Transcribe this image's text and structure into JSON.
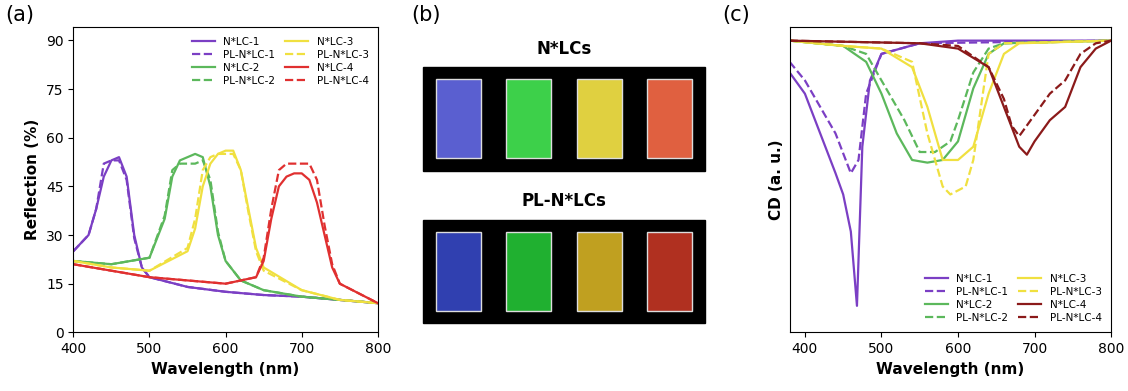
{
  "chart_data": [
    {
      "type": "line",
      "panel": "(a)",
      "x_label": "Wavelength (nm)",
      "y_label": "Reflection (%)",
      "xlim": [
        400,
        800
      ],
      "xticks": [
        400,
        500,
        600,
        700,
        800
      ],
      "ylim": [
        0,
        94
      ],
      "yticks": [
        0,
        15,
        30,
        45,
        60,
        75,
        90
      ],
      "legend": "upper right",
      "series": [
        {
          "name": "N*LC-1",
          "color": "#7b3fc4",
          "line_style": "solid",
          "x": [
            400,
            420,
            430,
            440,
            450,
            460,
            470,
            480,
            490,
            500,
            550,
            600,
            650,
            700,
            750,
            800
          ],
          "values": [
            25,
            30,
            38,
            48,
            53,
            54,
            48,
            30,
            20,
            17,
            14,
            12.5,
            11.5,
            11,
            10,
            9
          ]
        },
        {
          "name": "PL-N*LC-1",
          "color": "#7b3fc4",
          "line_style": "dashed",
          "x": [
            400,
            420,
            430,
            440,
            450,
            460,
            470,
            480,
            490,
            500,
            550,
            600,
            650,
            700,
            750,
            800
          ],
          "values": [
            25,
            30,
            38,
            52,
            53,
            53,
            47,
            29,
            20,
            17,
            14,
            12.5,
            11.5,
            11,
            10,
            9
          ]
        },
        {
          "name": "N*LC-2",
          "color": "#5cb85c",
          "line_style": "solid",
          "x": [
            400,
            450,
            500,
            520,
            530,
            540,
            550,
            560,
            570,
            580,
            590,
            600,
            620,
            650,
            700,
            750,
            800
          ],
          "values": [
            22,
            21,
            23,
            35,
            48,
            53,
            54,
            55,
            54,
            45,
            30,
            22,
            16,
            13,
            11,
            10,
            9
          ]
        },
        {
          "name": "PL-N*LC-2",
          "color": "#5cb85c",
          "line_style": "dashed",
          "x": [
            400,
            450,
            500,
            520,
            530,
            540,
            550,
            560,
            570,
            580,
            590,
            600,
            620,
            650,
            700,
            750,
            800
          ],
          "values": [
            22,
            21,
            23,
            36,
            50,
            52,
            52,
            52,
            53,
            47,
            31,
            22,
            16,
            13,
            11,
            10,
            9
          ]
        },
        {
          "name": "N*LC-3",
          "color": "#f0e040",
          "line_style": "solid",
          "x": [
            400,
            450,
            500,
            550,
            560,
            570,
            580,
            590,
            600,
            610,
            620,
            630,
            640,
            650,
            700,
            750,
            800
          ],
          "values": [
            22,
            20,
            19,
            25,
            32,
            45,
            52,
            55,
            56,
            56,
            50,
            38,
            26,
            20,
            13,
            10,
            9
          ]
        },
        {
          "name": "PL-N*LC-3",
          "color": "#f0e040",
          "line_style": "dashed",
          "x": [
            400,
            450,
            500,
            550,
            560,
            570,
            580,
            590,
            600,
            610,
            620,
            630,
            640,
            650,
            700,
            750,
            800
          ],
          "values": [
            22,
            20,
            19,
            26,
            35,
            50,
            54,
            55,
            55,
            55,
            50,
            37,
            25,
            19,
            13,
            10,
            9
          ]
        },
        {
          "name": "N*LC-4",
          "color": "#e03030",
          "line_style": "solid",
          "x": [
            400,
            450,
            500,
            550,
            600,
            640,
            650,
            660,
            670,
            680,
            690,
            700,
            710,
            720,
            730,
            740,
            750,
            800
          ],
          "values": [
            21,
            19,
            17,
            16,
            15,
            17,
            22,
            35,
            45,
            48,
            49,
            49,
            47,
            40,
            30,
            20,
            15,
            9
          ]
        },
        {
          "name": "PL-N*LC-4",
          "color": "#e03030",
          "line_style": "dashed",
          "x": [
            400,
            450,
            500,
            550,
            600,
            640,
            650,
            660,
            670,
            680,
            690,
            700,
            710,
            720,
            730,
            740,
            750,
            800
          ],
          "values": [
            21,
            19,
            17,
            16,
            15,
            17,
            23,
            38,
            50,
            52,
            52,
            52,
            52,
            47,
            33,
            21,
            15,
            9
          ]
        }
      ]
    },
    {
      "type": "swatches",
      "panel": "(b)",
      "rows": [
        {
          "name": "N*LCs",
          "colors": [
            "#5a5fd0",
            "#3dd04a",
            "#e0d040",
            "#e06040"
          ]
        },
        {
          "name": "PL-N*LCs",
          "colors": [
            "#3040b0",
            "#20b030",
            "#c0a020",
            "#b03020"
          ]
        }
      ]
    },
    {
      "type": "line",
      "panel": "(c)",
      "x_label": "Wavelength (nm)",
      "y_label": "CD (a. u.)",
      "xlim": [
        380,
        800
      ],
      "xticks": [
        400,
        500,
        600,
        700,
        800
      ],
      "ylim": [
        -110,
        5
      ],
      "yticks": [],
      "tick_labels": "x",
      "legend": "lower right",
      "series": [
        {
          "name": "N*LC-1",
          "color": "#7b3fc4",
          "line_style": "solid",
          "x": [
            380,
            400,
            420,
            440,
            450,
            460,
            468,
            475,
            485,
            500,
            550,
            600,
            800
          ],
          "values": [
            -12,
            -20,
            -35,
            -50,
            -58,
            -72,
            -100,
            -40,
            -15,
            -5,
            -1,
            0,
            0
          ]
        },
        {
          "name": "PL-N*LC-1",
          "color": "#7b3fc4",
          "line_style": "dashed",
          "x": [
            380,
            400,
            420,
            440,
            460,
            470,
            480,
            500,
            550,
            800
          ],
          "values": [
            -8,
            -15,
            -25,
            -35,
            -50,
            -45,
            -20,
            -5,
            -1,
            0
          ]
        },
        {
          "name": "N*LC-2",
          "color": "#5cb85c",
          "line_style": "solid",
          "x": [
            380,
            450,
            480,
            500,
            520,
            540,
            560,
            580,
            600,
            620,
            640,
            660,
            800
          ],
          "values": [
            0,
            -2,
            -8,
            -20,
            -35,
            -45,
            -46,
            -45,
            -38,
            -18,
            -5,
            -1,
            0
          ]
        },
        {
          "name": "PL-N*LC-2",
          "color": "#5cb85c",
          "line_style": "dashed",
          "x": [
            380,
            450,
            480,
            500,
            530,
            550,
            570,
            590,
            600,
            620,
            640,
            660,
            800
          ],
          "values": [
            0,
            -2,
            -5,
            -15,
            -30,
            -42,
            -42,
            -38,
            -30,
            -12,
            -3,
            -1,
            0
          ]
        },
        {
          "name": "N*LC-3",
          "color": "#f0e040",
          "line_style": "solid",
          "x": [
            380,
            450,
            500,
            540,
            560,
            580,
            600,
            620,
            640,
            660,
            680,
            800
          ],
          "values": [
            0,
            -2,
            -3,
            -10,
            -25,
            -45,
            -45,
            -40,
            -20,
            -5,
            -1,
            0
          ]
        },
        {
          "name": "PL-N*LC-3",
          "color": "#f0e040",
          "line_style": "dashed",
          "x": [
            380,
            450,
            500,
            540,
            560,
            580,
            590,
            610,
            620,
            630,
            640,
            660,
            800
          ],
          "values": [
            0,
            -2,
            -3,
            -8,
            -35,
            -55,
            -58,
            -55,
            -45,
            -25,
            -5,
            -1,
            0
          ]
        },
        {
          "name": "N*LC-4",
          "color": "#8b1a1a",
          "line_style": "solid",
          "x": [
            380,
            550,
            600,
            640,
            660,
            680,
            690,
            700,
            720,
            740,
            760,
            780,
            800
          ],
          "values": [
            0,
            -1,
            -3,
            -10,
            -25,
            -40,
            -43,
            -38,
            -30,
            -25,
            -10,
            -3,
            0
          ]
        },
        {
          "name": "PL-N*LC-4",
          "color": "#8b1a1a",
          "line_style": "dashed",
          "x": [
            380,
            550,
            600,
            640,
            660,
            670,
            680,
            700,
            720,
            740,
            760,
            780,
            800
          ],
          "values": [
            0,
            -1,
            -2,
            -10,
            -22,
            -32,
            -36,
            -28,
            -20,
            -15,
            -5,
            -1,
            0
          ]
        }
      ]
    }
  ]
}
